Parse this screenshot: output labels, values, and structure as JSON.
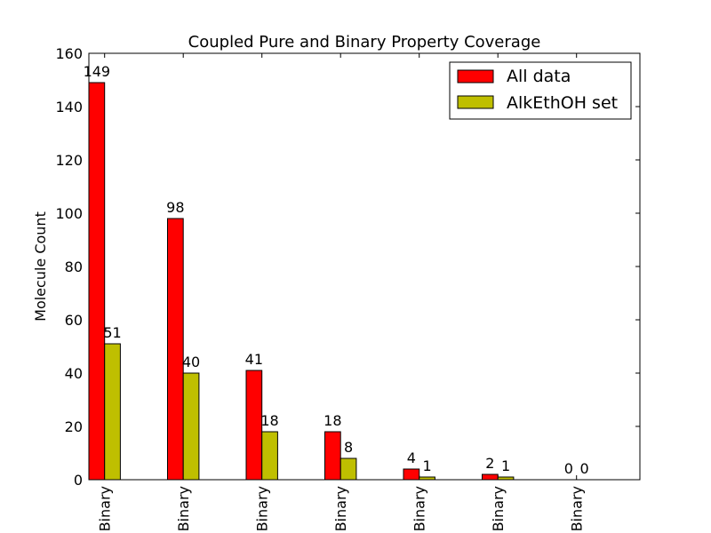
{
  "chart_data": {
    "type": "bar",
    "title": "Coupled Pure and Binary Property Coverage",
    "xlabel": "",
    "ylabel": "Molecule Count",
    "ylim": [
      0,
      160
    ],
    "yticks": [
      0,
      20,
      40,
      60,
      80,
      100,
      120,
      140,
      160
    ],
    "categories": [
      "Binary",
      "Binary",
      "Binary",
      "Binary",
      "Binary",
      "Binary",
      "Binary"
    ],
    "series": [
      {
        "name": "All data",
        "color": "#ff0000",
        "values": [
          149,
          98,
          41,
          18,
          4,
          2,
          0
        ]
      },
      {
        "name": "AlkEthOH set",
        "color": "#bfbf00",
        "values": [
          51,
          40,
          18,
          8,
          1,
          1,
          0
        ]
      }
    ],
    "legend_position": "top-right",
    "grid": false
  }
}
